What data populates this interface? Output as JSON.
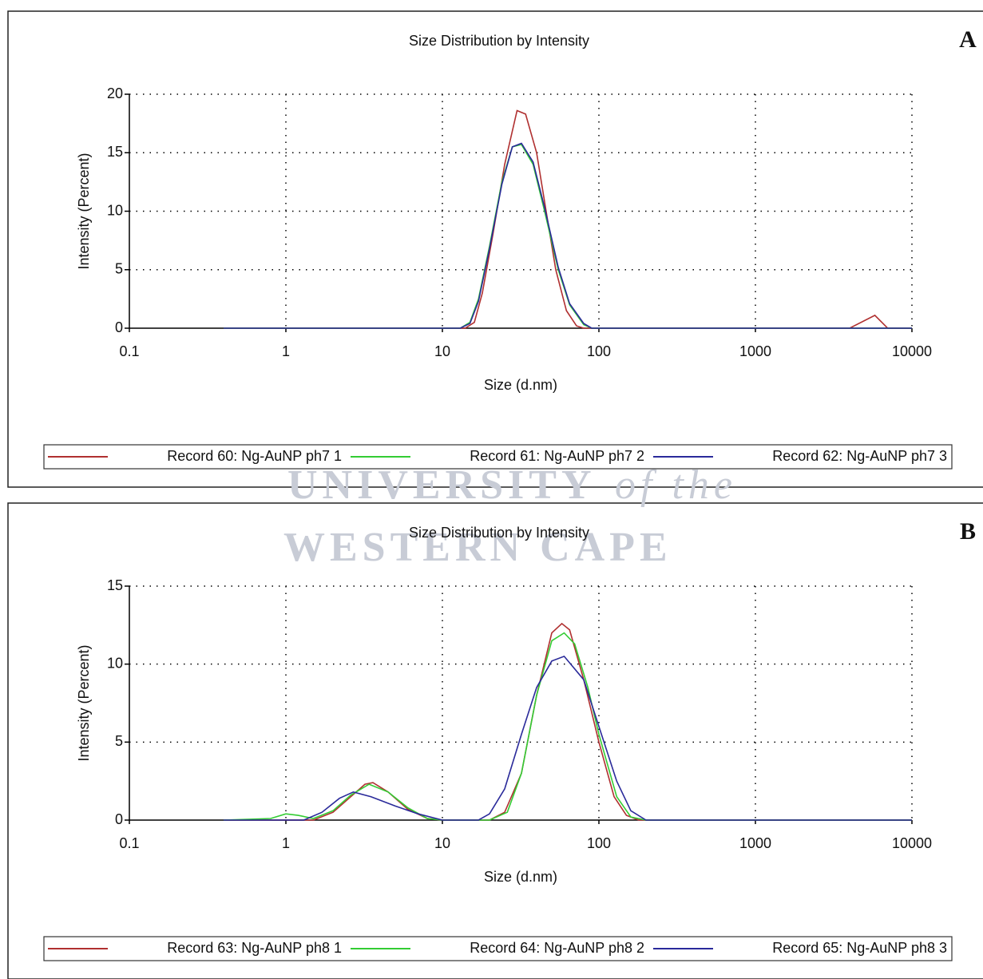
{
  "chart_data": [
    {
      "type": "line",
      "title": "Size Distribution by Intensity",
      "panel_label": "A",
      "xlabel": "Size (d.nm)",
      "ylabel": "Intensity (Percent)",
      "xscale": "log",
      "xlim": [
        0.1,
        10000
      ],
      "xticks": [
        0.1,
        1,
        10,
        100,
        1000,
        10000
      ],
      "ylim": [
        0,
        20
      ],
      "yticks": [
        0,
        5,
        10,
        15,
        20
      ],
      "grid": true,
      "legend": "bottom",
      "series": [
        {
          "name": "Record 60: Ng-AuNP ph7 1",
          "color": "#b03030",
          "x": [
            0.4,
            14,
            16,
            18,
            21,
            25,
            30,
            34,
            40,
            46,
            53,
            62,
            72,
            80,
            4000,
            5800,
            7000,
            10000
          ],
          "values": [
            0,
            0,
            0.5,
            3,
            8,
            14,
            18.6,
            18.3,
            15,
            10,
            5,
            1.5,
            0.2,
            0,
            0,
            1.1,
            0,
            0
          ]
        },
        {
          "name": "Record 61: Ng-AuNP ph7 2",
          "color": "#33cc33",
          "x": [
            0.4,
            13,
            15,
            17,
            20,
            24,
            28,
            32,
            38,
            45,
            55,
            65,
            80,
            90,
            10000
          ],
          "values": [
            0,
            0,
            0.5,
            2.5,
            7,
            12.5,
            15.5,
            15.7,
            14,
            10,
            5,
            2,
            0.3,
            0,
            0
          ]
        },
        {
          "name": "Record 62: Ng-AuNP ph7 3",
          "color": "#2a2a9a",
          "x": [
            0.4,
            13,
            15,
            17,
            20,
            24,
            28,
            32,
            38,
            45,
            55,
            65,
            80,
            90,
            10000
          ],
          "values": [
            0,
            0,
            0.4,
            2.3,
            6.8,
            12.3,
            15.5,
            15.8,
            14.2,
            10.3,
            5.2,
            2.1,
            0.4,
            0,
            0
          ]
        }
      ]
    },
    {
      "type": "line",
      "title": "Size Distribution by Intensity",
      "panel_label": "B",
      "xlabel": "Size (d.nm)",
      "ylabel": "Intensity (Percent)",
      "xscale": "log",
      "xlim": [
        0.1,
        10000
      ],
      "xticks": [
        0.1,
        1,
        10,
        100,
        1000,
        10000
      ],
      "ylim": [
        0,
        15
      ],
      "yticks": [
        0,
        5,
        10,
        15
      ],
      "grid": true,
      "legend": "bottom",
      "series": [
        {
          "name": "Record 63: Ng-AuNP ph8 1",
          "color": "#b03030",
          "x": [
            0.4,
            1.5,
            2,
            2.6,
            3.2,
            3.6,
            4.5,
            6,
            8,
            10,
            20,
            25,
            32,
            40,
            50,
            58,
            65,
            80,
            100,
            125,
            150,
            180,
            10000
          ],
          "values": [
            0,
            0,
            0.5,
            1.5,
            2.3,
            2.4,
            1.8,
            0.7,
            0.1,
            0,
            0,
            0.5,
            3,
            8,
            12,
            12.6,
            12.2,
            9,
            5,
            1.5,
            0.3,
            0,
            0
          ]
        },
        {
          "name": "Record 64: Ng-AuNP ph8 2",
          "color": "#33cc33",
          "x": [
            0.4,
            0.8,
            1,
            1.2,
            1.5,
            2,
            2.6,
            3.4,
            4.5,
            6,
            8,
            10,
            20,
            26,
            32,
            40,
            50,
            60,
            70,
            85,
            100,
            130,
            160,
            200,
            10000
          ],
          "values": [
            0,
            0.1,
            0.4,
            0.3,
            0.1,
            0.6,
            1.6,
            2.3,
            1.8,
            0.8,
            0.1,
            0,
            0,
            0.5,
            3,
            8,
            11.5,
            12,
            11.3,
            8.5,
            5.5,
            1.5,
            0.2,
            0,
            0
          ]
        },
        {
          "name": "Record 65: Ng-AuNP ph8 3",
          "color": "#2a2a9a",
          "x": [
            0.4,
            1.3,
            1.7,
            2.2,
            2.7,
            3.5,
            5,
            7,
            10,
            17,
            20,
            25,
            32,
            40,
            50,
            60,
            80,
            100,
            130,
            160,
            200,
            10000
          ],
          "values": [
            0,
            0,
            0.5,
            1.4,
            1.8,
            1.5,
            0.9,
            0.4,
            0,
            0,
            0.4,
            2,
            5.5,
            8.5,
            10.2,
            10.5,
            9,
            6,
            2.5,
            0.6,
            0,
            0
          ]
        }
      ]
    }
  ],
  "watermark": {
    "line1": "UNIVERSITY",
    "line1_suffix": "of the",
    "line2": "WESTERN CAPE"
  }
}
